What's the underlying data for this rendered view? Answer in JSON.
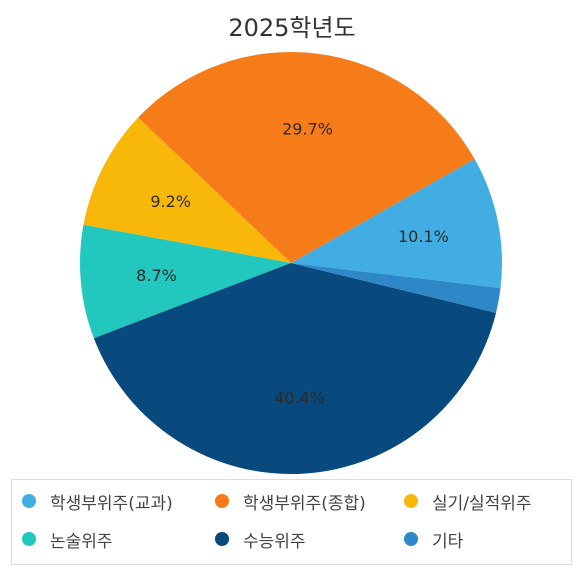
{
  "chart_data": {
    "type": "pie",
    "title": "2025학년도",
    "slices": [
      {
        "name": "학생부위주(교과)",
        "value": 10.1,
        "label": "10.1%",
        "color": "#41ade2"
      },
      {
        "name": "학생부위주(종합)",
        "value": 29.7,
        "label": "29.7%",
        "color": "#f67b19"
      },
      {
        "name": "실기/실적위주",
        "value": 9.2,
        "label": "9.2%",
        "color": "#f8b80a"
      },
      {
        "name": "논술위주",
        "value": 8.7,
        "label": "8.7%",
        "color": "#22c8bd"
      },
      {
        "name": "수능위주",
        "value": 40.4,
        "label": "40.4%",
        "color": "#084a7d"
      },
      {
        "name": "기타",
        "value": 1.9,
        "label": "",
        "color": "#2e87c6"
      }
    ],
    "legend_position": "bottom"
  }
}
